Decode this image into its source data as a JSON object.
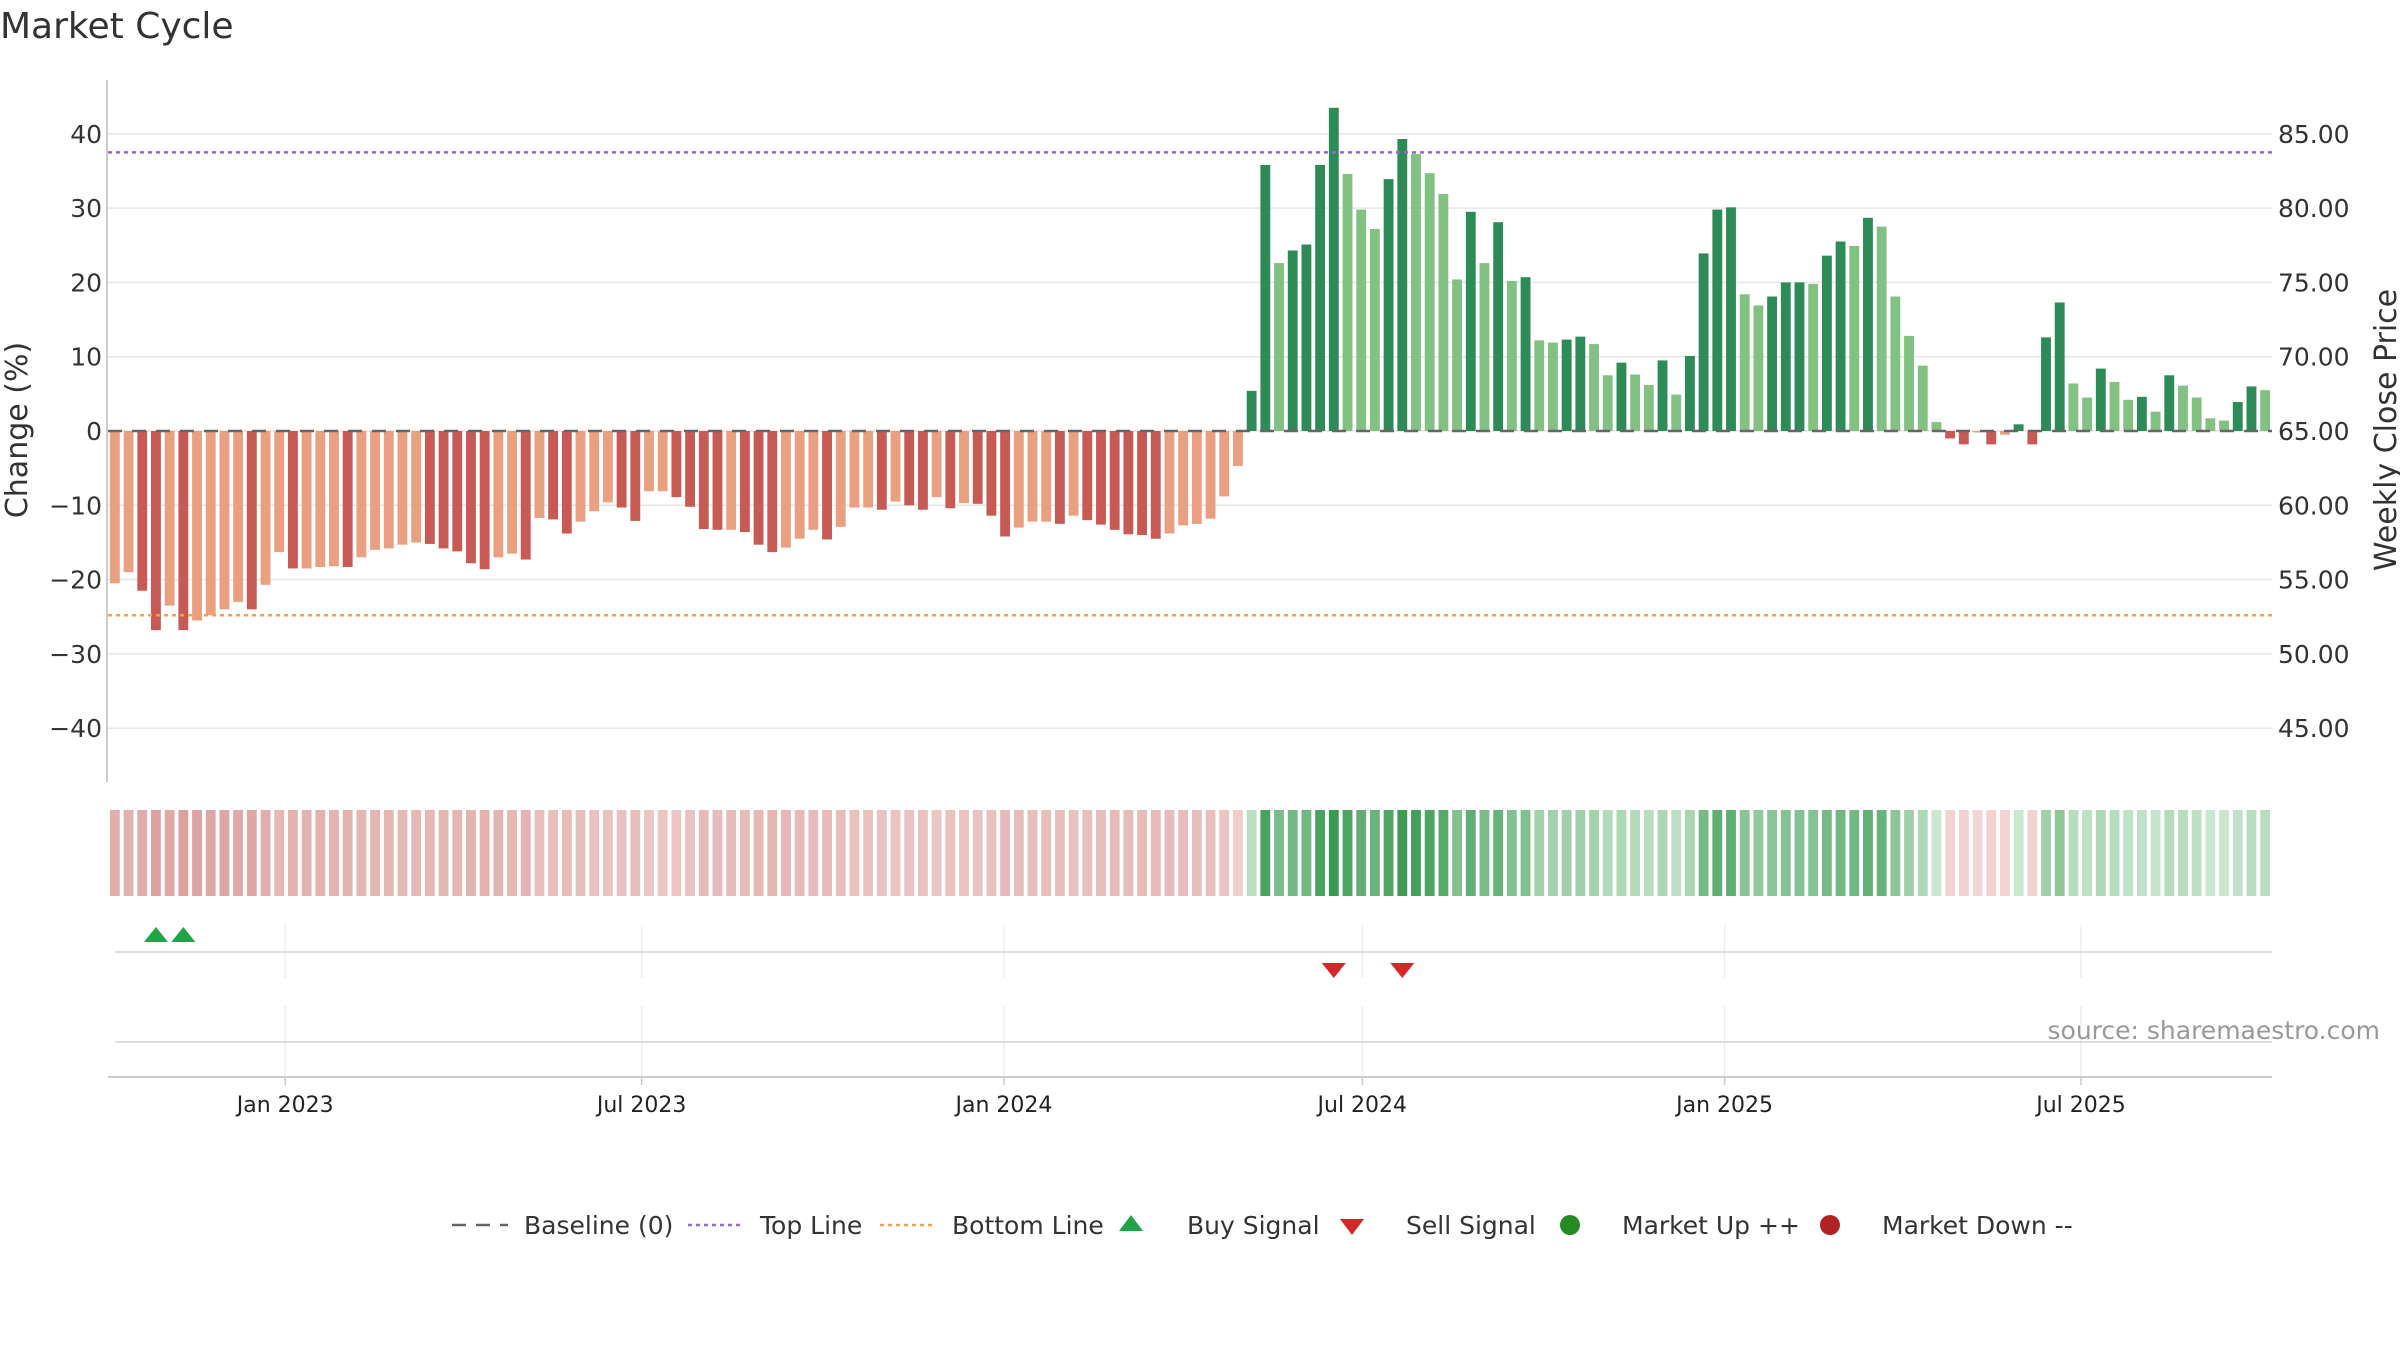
{
  "chart_data": {
    "type": "bar",
    "title": "Market Cycle",
    "ylabel_left": "Change (%)",
    "ylabel_right": "Weekly Close Price",
    "ylim_left": [
      -47,
      48
    ],
    "ylim_right": [
      42.5,
      92.5
    ],
    "yticks_left": [
      40,
      30,
      20,
      10,
      0,
      -10,
      -20,
      -30,
      -40
    ],
    "yticks_left_labels": [
      "40",
      "30",
      "20",
      "10",
      "0",
      "−10",
      "−20",
      "−30",
      "−40"
    ],
    "yticks_right": [
      85,
      80,
      75,
      70,
      65,
      60,
      55,
      50,
      45
    ],
    "yticks_right_labels": [
      "85.00",
      "80.00",
      "75.00",
      "70.00",
      "65.00",
      "60.00",
      "55.00",
      "50.00",
      "45.00"
    ],
    "x_start": "2022-10-03",
    "x_end": "2025-10-06",
    "x_tick_dates": [
      "2023-01-01",
      "2023-07-01",
      "2024-01-01",
      "2024-07-01",
      "2025-01-01",
      "2025-07-01"
    ],
    "x_tick_labels": [
      "Jan 2023",
      "Jul 2023",
      "Jan 2024",
      "Jul 2024",
      "Jan 2025",
      "Jul 2025"
    ],
    "top_line": 37.5,
    "bottom_line": -24.8,
    "baseline": 0,
    "series": [
      {
        "name": "Change (%)",
        "values": [
          -20.5,
          -19,
          -21.5,
          -26.8,
          -23.5,
          -26.8,
          -25.5,
          -24.8,
          -24,
          -23,
          -24,
          -20.7,
          -16.3,
          -18.5,
          -18.5,
          -18.3,
          -18.2,
          -18.3,
          -17,
          -16,
          -15.8,
          -15.3,
          -15,
          -15.2,
          -15.8,
          -16.2,
          -17.8,
          -18.6,
          -17,
          -16.5,
          -17.3,
          -11.7,
          -11.9,
          -13.8,
          -12.2,
          -10.8,
          -9.6,
          -10.3,
          -12.1,
          -8.1,
          -8.1,
          -8.9,
          -10.2,
          -13.2,
          -13.3,
          -13.3,
          -13.6,
          -15.3,
          -16.3,
          -15.7,
          -14.5,
          -13.3,
          -14.6,
          -12.9,
          -10.3,
          -10.3,
          -10.6,
          -9.5,
          -10,
          -10.6,
          -8.9,
          -10.4,
          -9.7,
          -9.8,
          -11.4,
          -14.2,
          -13,
          -12.2,
          -12.2,
          -12.5,
          -11.4,
          -12,
          -12.6,
          -13.3,
          -13.9,
          -14,
          -14.5,
          -13.8,
          -12.7,
          -12.5,
          -11.8,
          -8.8,
          -4.7,
          5.4,
          35.8,
          22.6,
          24.3,
          25.1,
          35.8,
          43.5,
          34.6,
          29.8,
          27.2,
          33.9,
          39.3,
          37.3,
          34.7,
          31.9,
          20.4,
          29.5,
          22.6,
          28.1,
          20.2,
          20.7,
          12.2,
          11.9,
          12.3,
          12.7,
          11.7,
          7.5,
          9.2,
          7.6,
          6.2,
          9.5,
          4.9,
          10.1,
          23.9,
          29.8,
          30.1,
          18.4,
          16.9,
          18.1,
          20,
          20,
          19.8,
          23.6,
          25.5,
          24.9,
          28.7,
          27.5,
          18.1,
          12.8,
          8.8,
          1.2,
          -1,
          -1.8,
          -0.2,
          -1.8,
          -0.5,
          0.9,
          -1.8,
          12.6,
          17.3,
          6.4,
          4.5,
          8.4,
          6.6,
          4.2,
          4.6,
          2.6,
          7.5,
          6.1,
          4.5,
          1.7,
          1.4,
          3.9,
          6,
          5.5
        ]
      }
    ],
    "legend": [
      {
        "label": "Baseline (0)",
        "type": "dash-line"
      },
      {
        "label": "Top Line",
        "type": "dotted-line"
      },
      {
        "label": "Bottom Line",
        "type": "dotted-line"
      },
      {
        "label": "Buy Signal",
        "type": "triangle-up"
      },
      {
        "label": "Sell Signal",
        "type": "triangle-down"
      },
      {
        "label": "Market Up ++",
        "type": "circle"
      },
      {
        "label": "Market Down --",
        "type": "circle"
      }
    ],
    "legend_placement": "bottom-center",
    "buy_signals": [
      3,
      5
    ],
    "sell_signals": [
      89,
      94
    ],
    "grid": true,
    "source": "source: sharemaestro.com"
  },
  "colors": {
    "dark_red": "#c85a55",
    "light_red": "#e8a080",
    "dark_green": "#2e8b57",
    "light_green": "#82c181",
    "top_line": "#9966cc",
    "bottom_line": "#f0a050",
    "baseline": "#666666",
    "buy": "#22a34a",
    "sell": "#d62728",
    "market_up": "#228b22",
    "market_down": "#b22222",
    "grid": "#e6e6e6",
    "axis": "#cccccc"
  }
}
